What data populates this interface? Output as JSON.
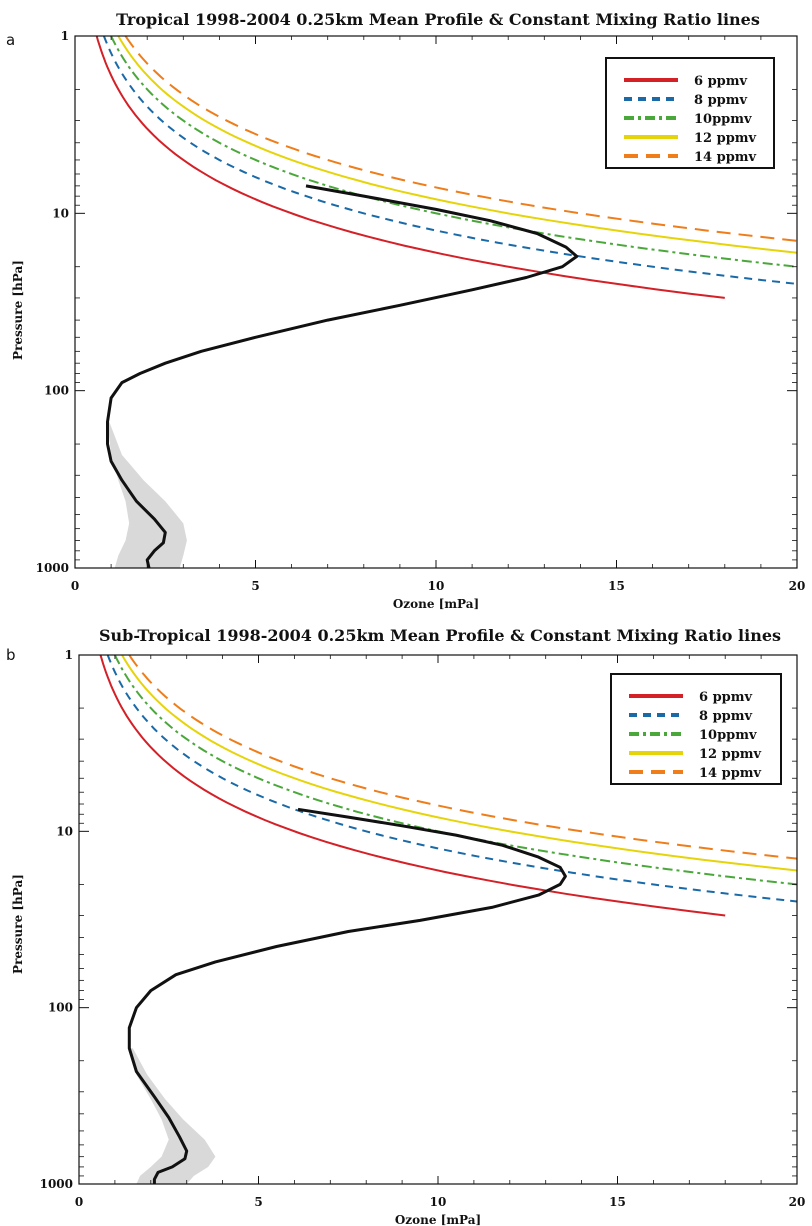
{
  "chart_data": [
    {
      "type": "line",
      "panel_label": "a",
      "title": "Tropical 1998-2004 0.25km Mean Profile & Constant Mixing Ratio lines",
      "xlabel": "Ozone [mPa]",
      "ylabel": "Pressure [hPa]",
      "xlim": [
        0,
        20
      ],
      "ylim": [
        1000,
        1
      ],
      "yscale": "log",
      "x_ticks": [
        "0",
        "5",
        "10",
        "15",
        "20"
      ],
      "y_ticks": [
        "1",
        "10",
        "100",
        "1000"
      ],
      "grid": false,
      "legend_position": "top-right",
      "mixing_lines_end_x": {
        "6 ppmv": 18,
        "8 ppmv": 20,
        "10ppmv": 20,
        "12 ppmv": 20,
        "14 ppmv": 20
      },
      "series": [
        {
          "name": "6 ppmv",
          "color": "#d42027",
          "style": "solid"
        },
        {
          "name": "8 ppmv",
          "color": "#1a6aa8",
          "style": "dashed"
        },
        {
          "name": "10ppmv",
          "color": "#4aa83a",
          "style": "dashdot"
        },
        {
          "name": "12 ppmv",
          "color": "#e6d40a",
          "style": "solid"
        },
        {
          "name": "14 ppmv",
          "color": "#ee7d1a",
          "style": "longdash"
        }
      ],
      "mean_profile": {
        "color": "#111111",
        "points": [
          [
            6.4,
            7
          ],
          [
            8,
            8
          ],
          [
            10,
            9.5
          ],
          [
            11.5,
            11
          ],
          [
            12.8,
            13
          ],
          [
            13.6,
            15.5
          ],
          [
            13.9,
            17.5
          ],
          [
            13.5,
            20
          ],
          [
            12.5,
            23
          ],
          [
            11,
            27
          ],
          [
            9,
            33
          ],
          [
            7,
            40
          ],
          [
            5,
            50
          ],
          [
            3.5,
            60
          ],
          [
            2.5,
            70
          ],
          [
            1.8,
            80
          ],
          [
            1.3,
            90
          ],
          [
            1,
            110
          ],
          [
            0.9,
            150
          ],
          [
            0.9,
            200
          ],
          [
            1.0,
            250
          ],
          [
            1.3,
            320
          ],
          [
            1.7,
            420
          ],
          [
            2.2,
            530
          ],
          [
            2.5,
            630
          ],
          [
            2.45,
            720
          ],
          [
            2.2,
            800
          ],
          [
            2.0,
            900
          ],
          [
            2.05,
            1000
          ]
        ]
      },
      "variability_band": {
        "color": "#d9d9d9",
        "left": [
          [
            0.9,
            150
          ],
          [
            1.0,
            230
          ],
          [
            1.2,
            320
          ],
          [
            1.4,
            420
          ],
          [
            1.5,
            560
          ],
          [
            1.4,
            700
          ],
          [
            1.2,
            850
          ],
          [
            1.1,
            1000
          ]
        ],
        "right": [
          [
            0.95,
            150
          ],
          [
            1.3,
            230
          ],
          [
            1.9,
            320
          ],
          [
            2.5,
            420
          ],
          [
            3.0,
            560
          ],
          [
            3.1,
            700
          ],
          [
            3.0,
            850
          ],
          [
            2.9,
            1000
          ]
        ]
      },
      "legend": [
        "6 ppmv",
        "8 ppmv",
        "10ppmv",
        "12 ppmv",
        "14 ppmv"
      ]
    },
    {
      "type": "line",
      "panel_label": "b",
      "title": "Sub-Tropical 1998-2004 0.25km Mean Profile & Constant Mixing Ratio lines",
      "xlabel": "Ozone [mPa]",
      "ylabel": "Pressure [hPa]",
      "xlim": [
        0,
        20
      ],
      "ylim": [
        1000,
        1
      ],
      "yscale": "log",
      "x_ticks": [
        "0",
        "5",
        "10",
        "15",
        "20"
      ],
      "y_ticks": [
        "1",
        "10",
        "100",
        "1000"
      ],
      "grid": false,
      "legend_position": "top-right",
      "mixing_lines_end_x": {
        "6 ppmv": 18,
        "8 ppmv": 20,
        "10ppmv": 20,
        "12 ppmv": 20,
        "14 ppmv": 20
      },
      "series": [
        {
          "name": "6 ppmv",
          "color": "#d42027",
          "style": "solid"
        },
        {
          "name": "8 ppmv",
          "color": "#1a6aa8",
          "style": "dashed"
        },
        {
          "name": "10ppmv",
          "color": "#4aa83a",
          "style": "dashdot"
        },
        {
          "name": "12 ppmv",
          "color": "#e6d40a",
          "style": "solid"
        },
        {
          "name": "14 ppmv",
          "color": "#ee7d1a",
          "style": "longdash"
        }
      ],
      "mean_profile": {
        "color": "#111111",
        "points": [
          [
            6.1,
            7.5
          ],
          [
            7.5,
            8.3
          ],
          [
            9,
            9.3
          ],
          [
            10.5,
            10.5
          ],
          [
            11.8,
            12
          ],
          [
            12.8,
            14
          ],
          [
            13.4,
            16
          ],
          [
            13.55,
            18
          ],
          [
            13.4,
            20
          ],
          [
            12.8,
            23
          ],
          [
            11.5,
            27
          ],
          [
            9.5,
            32
          ],
          [
            7.5,
            37
          ],
          [
            5.5,
            45
          ],
          [
            3.8,
            55
          ],
          [
            2.7,
            65
          ],
          [
            2,
            80
          ],
          [
            1.6,
            100
          ],
          [
            1.4,
            130
          ],
          [
            1.4,
            170
          ],
          [
            1.6,
            230
          ],
          [
            2.1,
            320
          ],
          [
            2.5,
            420
          ],
          [
            2.8,
            540
          ],
          [
            3.0,
            650
          ],
          [
            2.95,
            720
          ],
          [
            2.6,
            800
          ],
          [
            2.2,
            860
          ],
          [
            2.1,
            940
          ],
          [
            2.1,
            1000
          ]
        ]
      },
      "variability_band": {
        "color": "#d9d9d9",
        "left": [
          [
            1.4,
            170
          ],
          [
            1.6,
            240
          ],
          [
            2.0,
            330
          ],
          [
            2.3,
            430
          ],
          [
            2.5,
            560
          ],
          [
            2.3,
            700
          ],
          [
            2.0,
            800
          ],
          [
            1.7,
            900
          ],
          [
            1.6,
            1000
          ]
        ],
        "right": [
          [
            1.5,
            170
          ],
          [
            1.9,
            240
          ],
          [
            2.4,
            330
          ],
          [
            2.9,
            430
          ],
          [
            3.5,
            560
          ],
          [
            3.8,
            700
          ],
          [
            3.6,
            800
          ],
          [
            3.2,
            900
          ],
          [
            3.0,
            1000
          ]
        ]
      },
      "legend": [
        "6 ppmv",
        "8 ppmv",
        "10ppmv",
        "12 ppmv",
        "14 ppmv"
      ]
    }
  ]
}
